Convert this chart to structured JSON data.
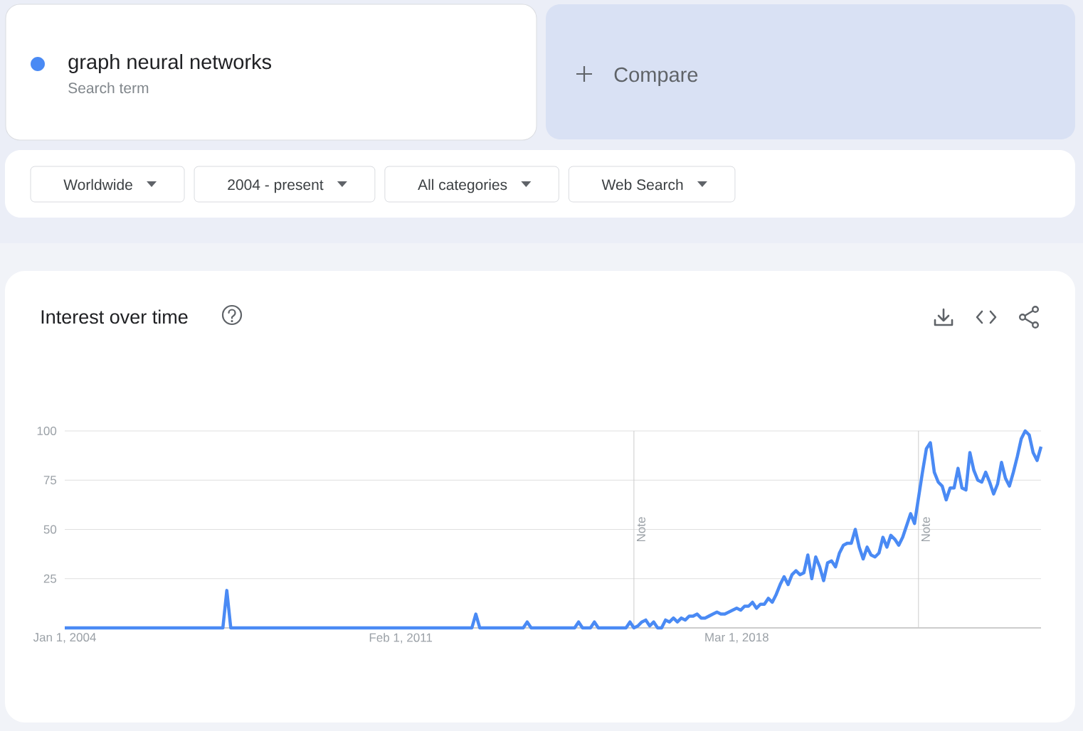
{
  "chart_data": {
    "type": "line",
    "title": "Interest over time",
    "x": [
      "2004-01",
      "2007-05",
      "2007-06",
      "2007-07",
      "2012-08",
      "2012-09",
      "2012-10",
      "2013-09",
      "2013-10",
      "2013-11",
      "2014-10",
      "2014-11",
      "2014-12",
      "2015-02",
      "2015-03",
      "2015-04",
      "2015-11",
      "2015-12",
      "2016-01",
      "2016-02",
      "2016-03",
      "2016-04",
      "2016-05",
      "2016-06",
      "2016-07",
      "2016-08",
      "2016-09",
      "2016-10",
      "2016-11",
      "2016-12",
      "2017-01",
      "2017-02",
      "2017-03",
      "2017-04",
      "2017-05",
      "2017-06",
      "2017-07",
      "2017-08",
      "2017-09",
      "2017-10",
      "2017-11",
      "2017-12",
      "2018-01",
      "2018-02",
      "2018-03",
      "2018-04",
      "2018-05",
      "2018-06",
      "2018-07",
      "2018-08",
      "2018-09",
      "2018-10",
      "2018-11",
      "2018-12",
      "2019-01",
      "2019-02",
      "2019-03",
      "2019-04",
      "2019-05",
      "2019-06",
      "2019-07",
      "2019-08",
      "2019-09",
      "2019-10",
      "2019-11",
      "2019-12",
      "2020-01",
      "2020-02",
      "2020-03",
      "2020-04",
      "2020-05",
      "2020-06",
      "2020-07",
      "2020-08",
      "2020-09",
      "2020-10",
      "2020-11",
      "2020-12",
      "2021-01",
      "2021-02",
      "2021-03",
      "2021-04",
      "2021-05",
      "2021-06",
      "2021-07",
      "2021-08",
      "2021-09",
      "2021-10",
      "2021-11",
      "2021-12",
      "2022-01",
      "2022-02",
      "2022-03",
      "2022-04",
      "2022-05",
      "2022-06",
      "2022-07",
      "2022-08",
      "2022-09",
      "2022-10",
      "2022-11",
      "2022-12",
      "2023-01",
      "2023-02",
      "2023-03",
      "2023-04",
      "2023-05",
      "2023-06",
      "2023-07",
      "2023-08",
      "2023-09",
      "2023-10",
      "2023-11",
      "2023-12",
      "2024-01",
      "2024-02",
      "2024-03",
      "2024-04",
      "2024-05",
      "2024-06",
      "2024-07",
      "2024-08"
    ],
    "series": [
      {
        "name": "graph neural networks",
        "color": "#4a8af4",
        "values": [
          0,
          0,
          19,
          0,
          0,
          7,
          0,
          0,
          3,
          0,
          0,
          3,
          0,
          0,
          3,
          0,
          0,
          3,
          0,
          1,
          3,
          4,
          1,
          3,
          0,
          0,
          4,
          3,
          5,
          3,
          5,
          4,
          6,
          6,
          7,
          5,
          5,
          6,
          7,
          8,
          7,
          7,
          8,
          9,
          10,
          9,
          11,
          11,
          13,
          10,
          12,
          12,
          15,
          13,
          17,
          22,
          26,
          22,
          27,
          29,
          27,
          28,
          37,
          25,
          36,
          31,
          24,
          33,
          34,
          31,
          38,
          42,
          43,
          43,
          50,
          41,
          35,
          41,
          37,
          36,
          38,
          46,
          41,
          47,
          45,
          42,
          46,
          52,
          58,
          53,
          66,
          79,
          91,
          94,
          79,
          74,
          72,
          65,
          71,
          71,
          81,
          71,
          70,
          89,
          80,
          75,
          74,
          79,
          74,
          68,
          73,
          84,
          76,
          72,
          79,
          87,
          96,
          100,
          98,
          89,
          85,
          92
        ]
      }
    ],
    "xlim": [
      "2004-01-01",
      "2024-08-01"
    ],
    "xticks": [
      {
        "value": "2004-01-01",
        "label": "Jan 1, 2004"
      },
      {
        "value": "2011-02-01",
        "label": "Feb 1, 2011"
      },
      {
        "value": "2018-03-01",
        "label": "Mar 1, 2018"
      }
    ],
    "ylim": [
      0,
      100
    ],
    "yticks": [
      25,
      50,
      75,
      100
    ],
    "grid": "y",
    "legend": "top left",
    "ref_lines": [
      {
        "axis": "x",
        "value": "2016-01-01",
        "label": "Note",
        "color": "#cccccc"
      },
      {
        "axis": "x",
        "value": "2022-01-01",
        "label": "Note",
        "color": "#cccccc"
      }
    ],
    "annotations": [
      "Search term",
      "Compare",
      "Worldwide",
      "2004 - present",
      "All categories",
      "Web Search"
    ]
  }
}
